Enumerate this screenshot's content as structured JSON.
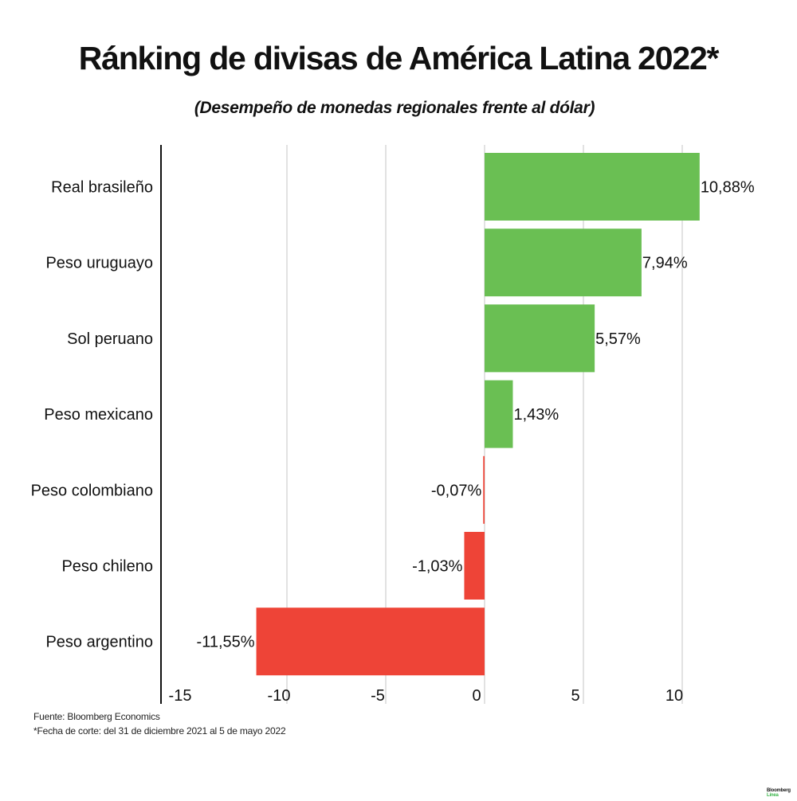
{
  "chart_data": {
    "type": "bar",
    "orientation": "horizontal",
    "title": "Ránking de divisas de América Latina 2022*",
    "subtitle": "(Desempeño de monedas regionales frente al dólar)",
    "categories": [
      "Real brasileño",
      "Peso uruguayo",
      "Sol peruano",
      "Peso mexicano",
      "Peso colombiano",
      "Peso chileno",
      "Peso argentino"
    ],
    "values": [
      10.88,
      7.94,
      5.57,
      1.43,
      -0.07,
      -1.03,
      -11.55
    ],
    "data_labels": [
      "10,88%",
      "7,94%",
      "5,57%",
      "1,43%",
      "-0,07%",
      "-1,03%",
      "-11,55%"
    ],
    "xlim": [
      -15,
      11
    ],
    "xticks": [
      -15,
      -10,
      -5,
      0,
      5,
      10
    ],
    "xtick_labels": [
      "-15",
      "-10",
      "-5",
      "0",
      "5",
      "10"
    ],
    "grid": true,
    "colors": {
      "positive": "#6abf53",
      "negative": "#ee4437",
      "grid": "#d9d9d9",
      "axis": "#111111"
    }
  },
  "footer": {
    "source": "Fuente: Bloomberg Economics",
    "note": "*Fecha de corte: del 31 de diciembre 2021 al 5 de mayo 2022"
  },
  "logo": {
    "line1": "Bloomberg",
    "line2": "Línea"
  }
}
